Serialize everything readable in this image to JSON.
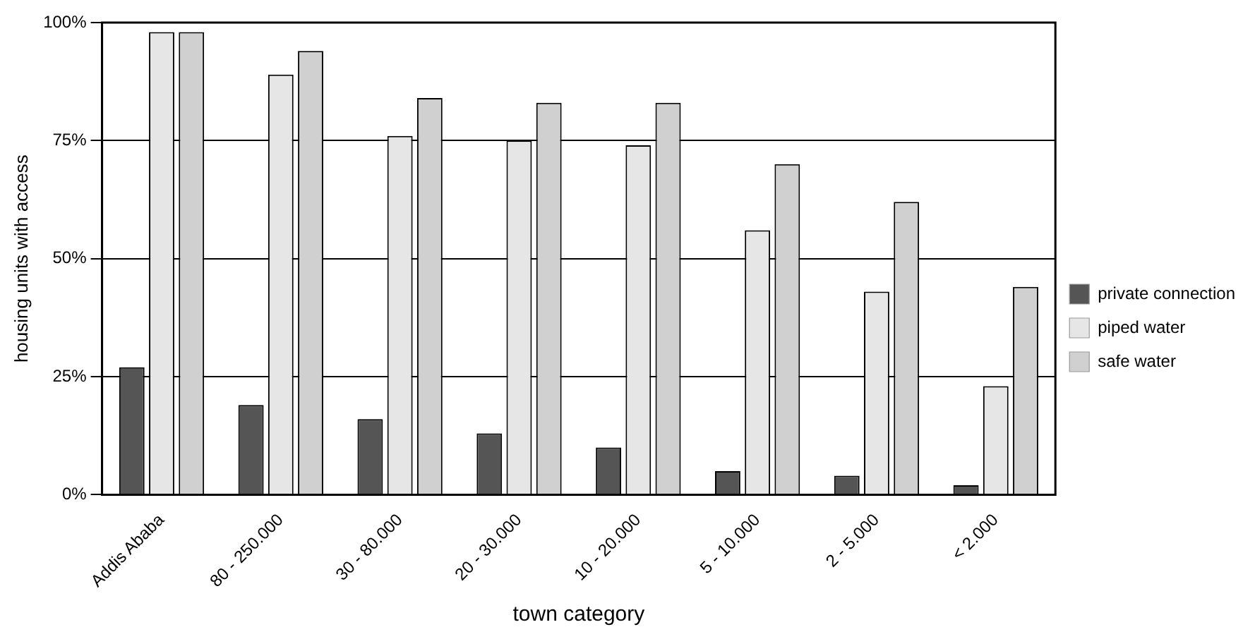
{
  "chart_data": {
    "type": "bar",
    "xlabel": "town category",
    "ylabel": "housing units with access",
    "categories": [
      "Addis Ababa",
      "80 - 250.000",
      "30 - 80.000",
      "20 - 30.000",
      "10 - 20.000",
      "5 - 10.000",
      "2 - 5.000",
      "< 2.000"
    ],
    "series": [
      {
        "name": "private connection",
        "color": "#555555",
        "values": [
          27,
          19,
          16,
          13,
          10,
          5,
          4,
          2
        ]
      },
      {
        "name": "piped water",
        "color": "#e6e6e6",
        "values": [
          98,
          89,
          76,
          75,
          74,
          56,
          43,
          23
        ]
      },
      {
        "name": "safe water",
        "color": "#d0d0d0",
        "values": [
          98,
          94,
          84,
          83,
          83,
          70,
          62,
          44
        ]
      }
    ],
    "ylim": [
      0,
      100
    ],
    "yticks": [
      {
        "value": 0,
        "label": "0%"
      },
      {
        "value": 25,
        "label": "25%"
      },
      {
        "value": 50,
        "label": "50%"
      },
      {
        "value": 75,
        "label": "75%"
      },
      {
        "value": 100,
        "label": "100%"
      }
    ],
    "grid": "y",
    "legend": "right"
  }
}
